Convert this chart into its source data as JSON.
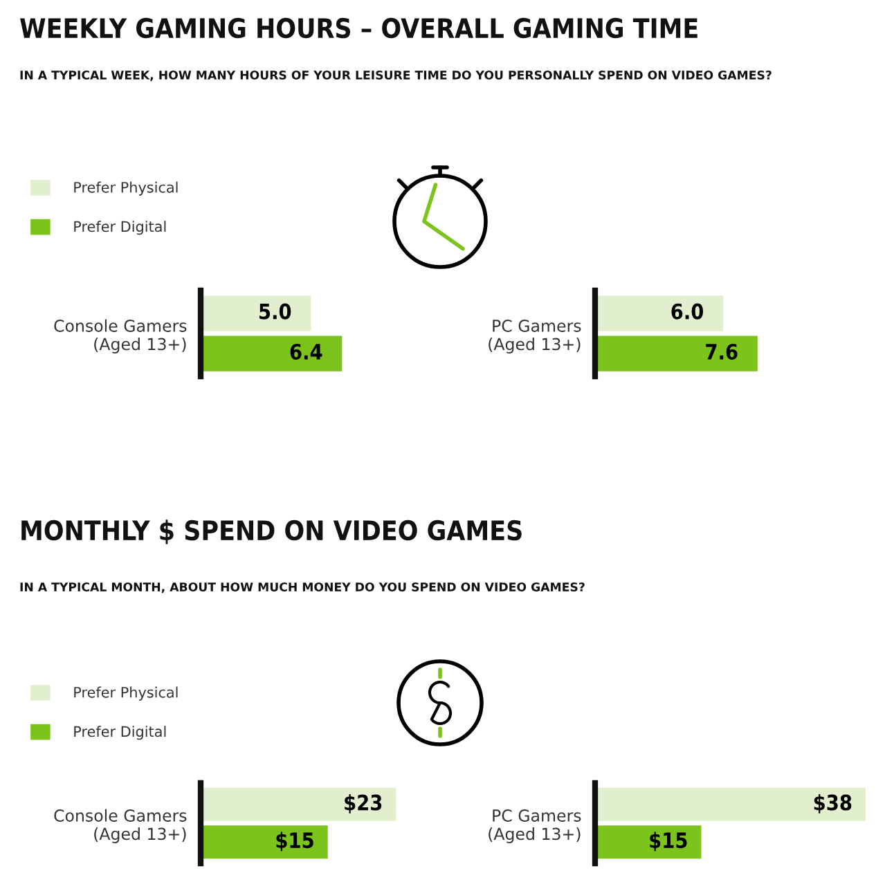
{
  "chart_data": [
    {
      "type": "bar",
      "orientation": "horizontal",
      "title": "WEEKLY GAMING HOURS – OVERALL GAMING TIME",
      "subtitle": "IN A TYPICAL WEEK, HOW MANY HOURS OF YOUR LEISURE TIME DO YOU PERSONALLY SPEND ON VIDEO GAMES?",
      "categories": [
        "Console Gamers\n(Aged 13+)"
      ],
      "tick_labels": "y",
      "legend": "top left",
      "series": [
        {
          "name": "Prefer Physical",
          "color": "#e2efcf",
          "values": [
            5.0
          ],
          "value_labels": [
            "5.0"
          ]
        },
        {
          "name": "Prefer Digital",
          "color": "#7cc41c",
          "values": [
            6.4
          ],
          "value_labels": [
            "6.4"
          ]
        }
      ]
    },
    {
      "type": "bar",
      "orientation": "horizontal",
      "categories": [
        "PC Gamers\n(Aged 13+)"
      ],
      "tick_labels": "y",
      "series": [
        {
          "color": "#e2efcf",
          "values": [
            6.0
          ],
          "value_labels": [
            "6.0"
          ]
        },
        {
          "color": "#7cc41c",
          "values": [
            7.6
          ],
          "value_labels": [
            "7.6"
          ]
        }
      ]
    },
    {
      "type": "bar",
      "orientation": "horizontal",
      "title": "MONTHLY $ SPEND ON VIDEO GAMES",
      "subtitle": "IN A TYPICAL MONTH, ABOUT HOW MUCH MONEY DO YOU SPEND ON VIDEO GAMES?",
      "categories": [
        "Console Gamers\n(Aged 13+)"
      ],
      "tick_labels": "y",
      "legend": "top left",
      "series": [
        {
          "name": "Prefer Physical",
          "color": "#e2efcf",
          "values": [
            23
          ],
          "value_labels": [
            "$23"
          ]
        },
        {
          "name": "Prefer Digital",
          "color": "#7cc41c",
          "values": [
            15
          ],
          "value_labels": [
            "$15"
          ]
        }
      ]
    },
    {
      "type": "bar",
      "orientation": "horizontal",
      "categories": [
        "PC Gamers\n(Aged 13+)"
      ],
      "tick_labels": "y",
      "series": [
        {
          "color": "#e2efcf",
          "values": [
            38
          ],
          "value_labels": [
            "$38"
          ]
        },
        {
          "color": "#7cc41c",
          "values": [
            15
          ],
          "value_labels": [
            "$15"
          ]
        }
      ]
    }
  ]
}
